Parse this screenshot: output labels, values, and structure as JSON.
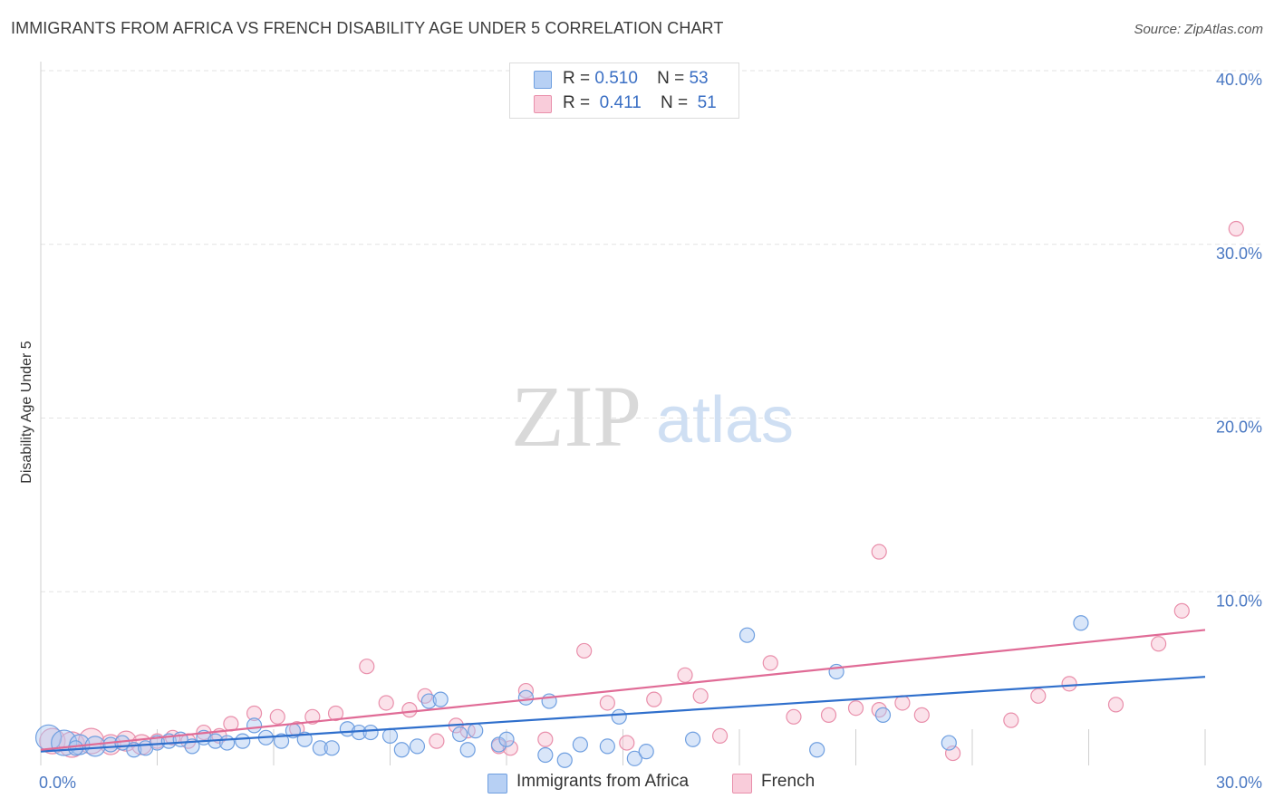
{
  "title": "IMMIGRANTS FROM AFRICA VS FRENCH DISABILITY AGE UNDER 5 CORRELATION CHART",
  "source": "Source: ZipAtlas.com",
  "watermark": {
    "zip": "ZIP",
    "atlas": "atlas"
  },
  "legend": {
    "r_label": "R =",
    "n_label": "N =",
    "items": [
      {
        "r": "0.510",
        "n": "53"
      },
      {
        "r": "0.411",
        "n": "51"
      }
    ]
  },
  "colors": {
    "blue_fill": "#aac8f2",
    "blue_stroke": "#6f9fe0",
    "blue_line": "#2f6fcc",
    "pink_fill": "#f7bfd0",
    "pink_stroke": "#e98fab",
    "pink_line": "#e06b96",
    "grid": "#e3e3e3",
    "axis_label": "#4a78c2"
  },
  "chart_data": {
    "type": "scatter",
    "title": "IMMIGRANTS FROM AFRICA VS FRENCH DISABILITY AGE UNDER 5 CORRELATION CHART",
    "xlabel": "",
    "ylabel": "Disability Age Under 5",
    "xlim": [
      0,
      30
    ],
    "ylim": [
      0,
      40
    ],
    "x_tick_labels": [
      "0.0%",
      "30.0%"
    ],
    "y_ticks": [
      10,
      20,
      30,
      40
    ],
    "y_tick_labels": [
      "10.0%",
      "20.0%",
      "30.0%",
      "40.0%"
    ],
    "grid": true,
    "series": [
      {
        "name": "Immigrants from Africa",
        "trend": {
          "x0": 0,
          "y0": 0.8,
          "x1": 30,
          "y1": 5.1
        },
        "points": [
          {
            "x": 0.2,
            "y": 1.6,
            "s": 2
          },
          {
            "x": 0.6,
            "y": 1.3,
            "s": 2
          },
          {
            "x": 1.0,
            "y": 1.2,
            "s": 1
          },
          {
            "x": 1.4,
            "y": 1.1,
            "s": 1
          },
          {
            "x": 1.8,
            "y": 1.2,
            "s": 0
          },
          {
            "x": 2.1,
            "y": 1.3,
            "s": 0
          },
          {
            "x": 2.4,
            "y": 0.9,
            "s": 0
          },
          {
            "x": 2.7,
            "y": 1.0,
            "s": 0
          },
          {
            "x": 3.0,
            "y": 1.3,
            "s": 0
          },
          {
            "x": 3.3,
            "y": 1.4,
            "s": 0
          },
          {
            "x": 3.6,
            "y": 1.5,
            "s": 0
          },
          {
            "x": 3.9,
            "y": 1.1,
            "s": 0
          },
          {
            "x": 4.2,
            "y": 1.6,
            "s": 0
          },
          {
            "x": 4.5,
            "y": 1.4,
            "s": 0
          },
          {
            "x": 4.8,
            "y": 1.3,
            "s": 0
          },
          {
            "x": 5.2,
            "y": 1.4,
            "s": 0
          },
          {
            "x": 5.5,
            "y": 2.3,
            "s": 0
          },
          {
            "x": 5.8,
            "y": 1.6,
            "s": 0
          },
          {
            "x": 6.2,
            "y": 1.4,
            "s": 0
          },
          {
            "x": 6.5,
            "y": 2.0,
            "s": 0
          },
          {
            "x": 6.8,
            "y": 1.5,
            "s": 0
          },
          {
            "x": 7.2,
            "y": 1.0,
            "s": 0
          },
          {
            "x": 7.5,
            "y": 1.0,
            "s": 0
          },
          {
            "x": 7.9,
            "y": 2.1,
            "s": 0
          },
          {
            "x": 8.2,
            "y": 1.9,
            "s": 0
          },
          {
            "x": 8.5,
            "y": 1.9,
            "s": 0
          },
          {
            "x": 9.0,
            "y": 1.7,
            "s": 0
          },
          {
            "x": 9.3,
            "y": 0.9,
            "s": 0
          },
          {
            "x": 9.7,
            "y": 1.1,
            "s": 0
          },
          {
            "x": 10.0,
            "y": 3.7,
            "s": 0
          },
          {
            "x": 10.3,
            "y": 3.8,
            "s": 0
          },
          {
            "x": 10.8,
            "y": 1.8,
            "s": 0
          },
          {
            "x": 11.0,
            "y": 0.9,
            "s": 0
          },
          {
            "x": 11.2,
            "y": 2.0,
            "s": 0
          },
          {
            "x": 11.8,
            "y": 1.2,
            "s": 0
          },
          {
            "x": 12.0,
            "y": 1.5,
            "s": 0
          },
          {
            "x": 12.5,
            "y": 3.9,
            "s": 0
          },
          {
            "x": 13.0,
            "y": 0.6,
            "s": 0
          },
          {
            "x": 13.1,
            "y": 3.7,
            "s": 0
          },
          {
            "x": 13.5,
            "y": 0.3,
            "s": 0
          },
          {
            "x": 13.9,
            "y": 1.2,
            "s": 0
          },
          {
            "x": 14.6,
            "y": 1.1,
            "s": 0
          },
          {
            "x": 14.9,
            "y": 2.8,
            "s": 0
          },
          {
            "x": 15.3,
            "y": 0.4,
            "s": 0
          },
          {
            "x": 15.6,
            "y": 0.8,
            "s": 0
          },
          {
            "x": 16.8,
            "y": 1.5,
            "s": 0
          },
          {
            "x": 18.2,
            "y": 7.5,
            "s": 0
          },
          {
            "x": 20.0,
            "y": 0.9,
            "s": 0
          },
          {
            "x": 20.5,
            "y": 5.4,
            "s": 0
          },
          {
            "x": 21.7,
            "y": 2.9,
            "s": 0
          },
          {
            "x": 23.4,
            "y": 1.3,
            "s": 0
          },
          {
            "x": 26.8,
            "y": 8.2,
            "s": 0
          },
          {
            "x": 0.9,
            "y": 1.0,
            "s": 0
          }
        ]
      },
      {
        "name": "French",
        "trend": {
          "x0": 0,
          "y0": 0.9,
          "x1": 30,
          "y1": 7.8
        },
        "points": [
          {
            "x": 0.3,
            "y": 1.4,
            "s": 2
          },
          {
            "x": 0.8,
            "y": 1.2,
            "s": 2
          },
          {
            "x": 1.3,
            "y": 1.4,
            "s": 2
          },
          {
            "x": 1.8,
            "y": 1.2,
            "s": 1
          },
          {
            "x": 2.2,
            "y": 1.4,
            "s": 1
          },
          {
            "x": 2.6,
            "y": 1.2,
            "s": 1
          },
          {
            "x": 3.0,
            "y": 1.4,
            "s": 0
          },
          {
            "x": 3.4,
            "y": 1.6,
            "s": 0
          },
          {
            "x": 3.8,
            "y": 1.4,
            "s": 0
          },
          {
            "x": 4.2,
            "y": 1.9,
            "s": 0
          },
          {
            "x": 4.6,
            "y": 1.7,
            "s": 0
          },
          {
            "x": 4.9,
            "y": 2.4,
            "s": 0
          },
          {
            "x": 5.5,
            "y": 3.0,
            "s": 0
          },
          {
            "x": 6.1,
            "y": 2.8,
            "s": 0
          },
          {
            "x": 6.6,
            "y": 2.1,
            "s": 0
          },
          {
            "x": 7.0,
            "y": 2.8,
            "s": 0
          },
          {
            "x": 7.6,
            "y": 3.0,
            "s": 0
          },
          {
            "x": 8.4,
            "y": 5.7,
            "s": 0
          },
          {
            "x": 8.9,
            "y": 3.6,
            "s": 0
          },
          {
            "x": 9.5,
            "y": 3.2,
            "s": 0
          },
          {
            "x": 9.9,
            "y": 4.0,
            "s": 0
          },
          {
            "x": 10.2,
            "y": 1.4,
            "s": 0
          },
          {
            "x": 10.7,
            "y": 2.3,
            "s": 0
          },
          {
            "x": 11.0,
            "y": 2.0,
            "s": 0
          },
          {
            "x": 11.8,
            "y": 1.1,
            "s": 0
          },
          {
            "x": 12.1,
            "y": 1.0,
            "s": 0
          },
          {
            "x": 12.5,
            "y": 4.3,
            "s": 0
          },
          {
            "x": 13.0,
            "y": 1.5,
            "s": 0
          },
          {
            "x": 14.0,
            "y": 6.6,
            "s": 0
          },
          {
            "x": 14.6,
            "y": 3.6,
            "s": 0
          },
          {
            "x": 15.1,
            "y": 1.3,
            "s": 0
          },
          {
            "x": 15.8,
            "y": 3.8,
            "s": 0
          },
          {
            "x": 16.6,
            "y": 5.2,
            "s": 0
          },
          {
            "x": 17.0,
            "y": 4.0,
            "s": 0
          },
          {
            "x": 17.5,
            "y": 1.7,
            "s": 0
          },
          {
            "x": 18.8,
            "y": 5.9,
            "s": 0
          },
          {
            "x": 19.4,
            "y": 2.8,
            "s": 0
          },
          {
            "x": 20.3,
            "y": 2.9,
            "s": 0
          },
          {
            "x": 21.0,
            "y": 3.3,
            "s": 0
          },
          {
            "x": 21.6,
            "y": 3.2,
            "s": 0
          },
          {
            "x": 22.2,
            "y": 3.6,
            "s": 0
          },
          {
            "x": 22.7,
            "y": 2.9,
            "s": 0
          },
          {
            "x": 23.5,
            "y": 0.7,
            "s": 0
          },
          {
            "x": 25.0,
            "y": 2.6,
            "s": 0
          },
          {
            "x": 25.7,
            "y": 4.0,
            "s": 0
          },
          {
            "x": 26.5,
            "y": 4.7,
            "s": 0
          },
          {
            "x": 27.7,
            "y": 3.5,
            "s": 0
          },
          {
            "x": 28.8,
            "y": 7.0,
            "s": 0
          },
          {
            "x": 21.6,
            "y": 12.3,
            "s": 0
          },
          {
            "x": 29.4,
            "y": 8.9,
            "s": 0
          },
          {
            "x": 30.8,
            "y": 30.9,
            "s": 0
          }
        ]
      }
    ]
  },
  "bottom_legend": [
    {
      "label": "Immigrants from Africa"
    },
    {
      "label": "French"
    }
  ]
}
